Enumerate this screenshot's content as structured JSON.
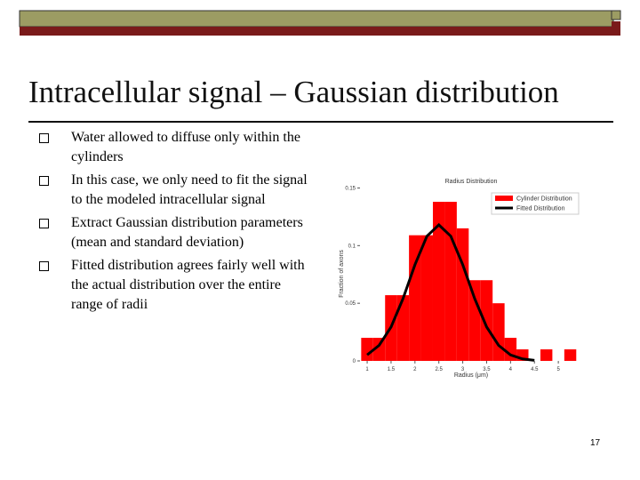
{
  "slide": {
    "title": "Intracellular signal – Gaussian distribution",
    "bullets": [
      "Water allowed to diffuse only within the cylinders",
      "In this case, we only need to fit the signal to the modeled intracellular signal",
      "Extract Gaussian distribution parameters (mean and standard deviation)",
      "Fitted distribution agrees fairly well with the actual distribution over the entire range of radii"
    ],
    "page_number": "17"
  },
  "chart_data": {
    "type": "histogram",
    "title": "Radius Distribution",
    "x_label": "Radius (μm)",
    "y_label": "Fraction of axons",
    "bins": [
      0.875,
      1.125,
      1.375,
      1.625,
      1.875,
      2.125,
      2.375,
      2.625,
      2.875,
      3.125,
      3.375,
      3.625,
      3.875,
      4.125,
      4.375,
      4.625,
      4.875,
      5.125,
      5.375
    ],
    "series": [
      {
        "name": "Cylinder Distribution",
        "color": "#ff0000",
        "values": [
          0.02,
          0.02,
          0.057,
          0.057,
          0.109,
          0.109,
          0.138,
          0.138,
          0.115,
          0.07,
          0.07,
          0.05,
          0.02,
          0.01,
          0,
          0.01,
          0,
          0.01
        ]
      },
      {
        "name": "Fitted Distribution",
        "color": "#000000",
        "x": [
          1,
          1.25,
          1.5,
          1.75,
          2,
          2.25,
          2.5,
          2.75,
          3,
          3.25,
          3.5,
          3.75,
          4,
          4.25,
          4.5
        ],
        "values": [
          0.0052,
          0.0135,
          0.0294,
          0.054,
          0.0834,
          0.1082,
          0.118,
          0.1082,
          0.0834,
          0.054,
          0.0294,
          0.0135,
          0.0052,
          0.0017,
          0.0005
        ]
      }
    ],
    "xlim": [
      0.85,
      5.5
    ],
    "ylim": [
      0,
      0.155
    ],
    "xticks": [
      1,
      1.5,
      2,
      2.5,
      3,
      3.5,
      4,
      4.5,
      5
    ],
    "yticks": [
      0,
      0.05,
      0.1,
      0.15
    ],
    "legend": "upper right"
  }
}
